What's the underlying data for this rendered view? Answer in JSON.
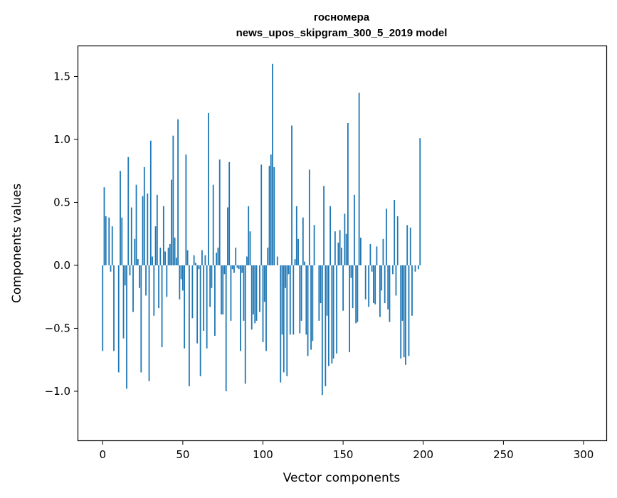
{
  "chart_data": {
    "type": "bar",
    "title": [
      "госномера",
      "news_upos_skipgram_300_5_2019 model"
    ],
    "xlabel": "Vector components",
    "ylabel": "Components values",
    "xlim": [
      -15.2,
      314.2
    ],
    "ylim": [
      -1.39,
      1.74
    ],
    "xticks": [
      0,
      50,
      100,
      150,
      200,
      250,
      300
    ],
    "xtick_labels": [
      "0",
      "50",
      "100",
      "150",
      "200",
      "250",
      "300"
    ],
    "yticks": [
      -1.0,
      -0.5,
      0.0,
      0.5,
      1.0,
      1.5
    ],
    "ytick_labels": [
      "−1.0",
      "−0.5",
      "0.0",
      "0.5",
      "1.0",
      "1.5"
    ],
    "bar_color": "#1f77b4",
    "grid": false,
    "legend": "none",
    "series": [
      {
        "values": [
          -0.68,
          0.62,
          0.39,
          0.0,
          0.38,
          -0.05,
          0.31,
          -0.68,
          0.0,
          0.0,
          -0.85,
          0.75,
          0.38,
          -0.58,
          -0.16,
          -0.98,
          0.86,
          -0.08,
          0.46,
          -0.37,
          0.21,
          0.64,
          0.05,
          -0.18,
          -0.85,
          0.55,
          0.78,
          -0.24,
          0.57,
          -0.92,
          0.99,
          0.07,
          -0.4,
          0.31,
          0.56,
          -0.34,
          0.14,
          -0.65,
          0.47,
          0.11,
          -0.25,
          0.14,
          0.17,
          0.68,
          1.03,
          0.22,
          0.06,
          1.16,
          -0.27,
          -0.11,
          -0.2,
          -0.66,
          0.88,
          0.12,
          -0.96,
          0.0,
          -0.42,
          0.08,
          0.02,
          -0.62,
          -0.03,
          -0.88,
          0.12,
          -0.52,
          0.08,
          -0.66,
          1.21,
          -0.33,
          -0.18,
          0.64,
          -0.56,
          0.1,
          0.14,
          0.84,
          -0.39,
          -0.39,
          -0.07,
          -1.0,
          0.46,
          0.82,
          -0.44,
          -0.03,
          -0.06,
          0.14,
          -0.02,
          -0.03,
          -0.68,
          -0.06,
          -0.44,
          -0.94,
          0.07,
          0.47,
          0.27,
          -0.51,
          -0.39,
          -0.46,
          -0.44,
          0.0,
          -0.37,
          0.8,
          -0.61,
          -0.29,
          -0.68,
          0.14,
          0.79,
          0.88,
          1.6,
          0.78,
          0.0,
          0.07,
          0.0,
          -0.93,
          -0.55,
          -0.85,
          -0.18,
          -0.88,
          -0.07,
          -0.55,
          1.11,
          -0.55,
          0.05,
          0.47,
          0.21,
          -0.54,
          -0.44,
          0.38,
          0.03,
          -0.55,
          -0.72,
          0.76,
          -0.67,
          -0.6,
          0.32,
          0.0,
          0.0,
          -0.44,
          -0.3,
          -1.03,
          0.63,
          -0.96,
          -0.4,
          -0.8,
          0.47,
          -0.78,
          -0.74,
          0.27,
          -0.7,
          0.18,
          0.28,
          0.14,
          -0.36,
          0.41,
          0.25,
          1.13,
          -0.69,
          -0.1,
          -0.34,
          0.56,
          -0.46,
          -0.45,
          1.37,
          0.22,
          0.0,
          0.0,
          -0.27,
          0.0,
          -0.33,
          0.17,
          -0.05,
          -0.3,
          -0.31,
          0.15,
          0.0,
          -0.41,
          -0.2,
          0.21,
          -0.3,
          0.45,
          -0.35,
          -0.45,
          0.0,
          -0.07,
          0.52,
          -0.24,
          0.39,
          0.0,
          -0.74,
          -0.44,
          -0.73,
          -0.79,
          0.32,
          -0.72,
          0.3,
          -0.4,
          0.0,
          -0.05,
          0.0,
          -0.03,
          1.01,
          0.0
        ]
      }
    ]
  }
}
